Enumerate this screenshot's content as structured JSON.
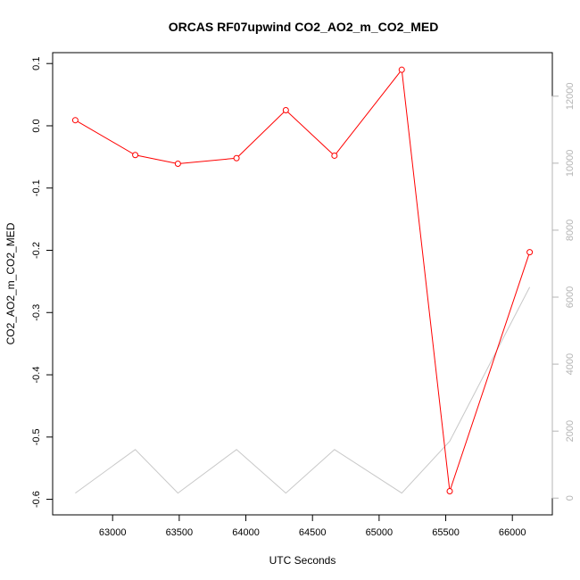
{
  "chart_data": {
    "type": "line",
    "title": "ORCAS RF07upwind CO2_AO2_m_CO2_MED",
    "xlabel": "UTC Seconds",
    "ylabel": "CO2_AO2_m_CO2_MED",
    "xlim": [
      62550,
      66300
    ],
    "ylim": [
      -0.625,
      0.1175
    ],
    "y2lim": [
      -500,
      13300
    ],
    "x_ticks": [
      63000,
      63500,
      64000,
      64500,
      65000,
      65500,
      66000
    ],
    "x_tick_labels": [
      "63000",
      "63500",
      "64000",
      "64500",
      "65000",
      "65500",
      "66000"
    ],
    "y_ticks": [
      0.1,
      0.0,
      -0.1,
      -0.2,
      -0.3,
      -0.4,
      -0.5,
      -0.6
    ],
    "y_tick_labels": [
      "0.1",
      "0.0",
      "-0.1",
      "-0.2",
      "-0.3",
      "-0.4",
      "-0.5",
      "-0.6"
    ],
    "y2_ticks": [
      0,
      2000,
      4000,
      6000,
      8000,
      10000,
      12000
    ],
    "y2_tick_labels": [
      "0",
      "2000",
      "4000",
      "6000",
      "8000",
      "10000",
      "12000"
    ],
    "grid": false,
    "series": [
      {
        "axis": "left",
        "color": "#ff0000",
        "marker": "circle",
        "x": [
          62720,
          63170,
          63490,
          63930,
          64300,
          64665,
          65170,
          65530,
          66130
        ],
        "y": [
          0.009,
          -0.047,
          -0.061,
          -0.052,
          0.025,
          -0.048,
          0.09,
          -0.587,
          -0.203
        ]
      },
      {
        "axis": "right",
        "color": "#c8c8c8",
        "marker": "none",
        "x": [
          62720,
          63170,
          63490,
          63930,
          64300,
          64665,
          65170,
          65530,
          66130
        ],
        "y": [
          150,
          1450,
          150,
          1450,
          150,
          1450,
          150,
          1700,
          6300
        ]
      }
    ]
  }
}
